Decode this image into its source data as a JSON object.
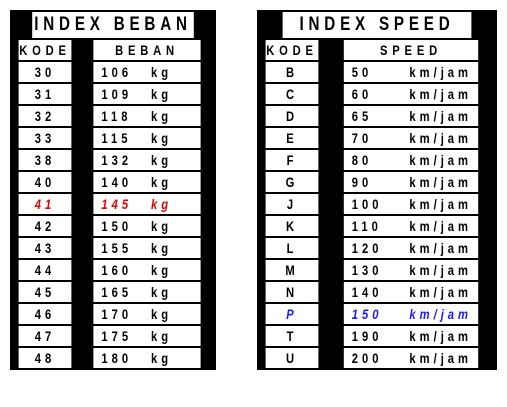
{
  "beban": {
    "title": "INDEX BEBAN",
    "col_kode": "KODE",
    "col_beban": "BEBAN",
    "unit": "kg",
    "highlight_color": "#e00000",
    "rows": [
      {
        "kode": "30",
        "beban": "106"
      },
      {
        "kode": "31",
        "beban": "109"
      },
      {
        "kode": "32",
        "beban": "118"
      },
      {
        "kode": "33",
        "beban": "115"
      },
      {
        "kode": "38",
        "beban": "132"
      },
      {
        "kode": "40",
        "beban": "140"
      },
      {
        "kode": "41",
        "beban": "145",
        "highlight": true
      },
      {
        "kode": "42",
        "beban": "150"
      },
      {
        "kode": "43",
        "beban": "155"
      },
      {
        "kode": "44",
        "beban": "160"
      },
      {
        "kode": "45",
        "beban": "165"
      },
      {
        "kode": "46",
        "beban": "170"
      },
      {
        "kode": "47",
        "beban": "175"
      },
      {
        "kode": "48",
        "beban": "180"
      }
    ]
  },
  "speed": {
    "title": "INDEX SPEED",
    "col_kode": "KODE",
    "col_speed": "SPEED",
    "unit": "km/jam",
    "highlight_color": "#1a1aff",
    "rows": [
      {
        "kode": "B",
        "speed": "50"
      },
      {
        "kode": "C",
        "speed": "60"
      },
      {
        "kode": "D",
        "speed": "65"
      },
      {
        "kode": "E",
        "speed": "70"
      },
      {
        "kode": "F",
        "speed": "80"
      },
      {
        "kode": "G",
        "speed": "90"
      },
      {
        "kode": "J",
        "speed": "100"
      },
      {
        "kode": "K",
        "speed": "110"
      },
      {
        "kode": "L",
        "speed": "120"
      },
      {
        "kode": "M",
        "speed": "130"
      },
      {
        "kode": "N",
        "speed": "140"
      },
      {
        "kode": "P",
        "speed": "150",
        "highlight": true
      },
      {
        "kode": "T",
        "speed": "190"
      },
      {
        "kode": "U",
        "speed": "200"
      }
    ]
  }
}
